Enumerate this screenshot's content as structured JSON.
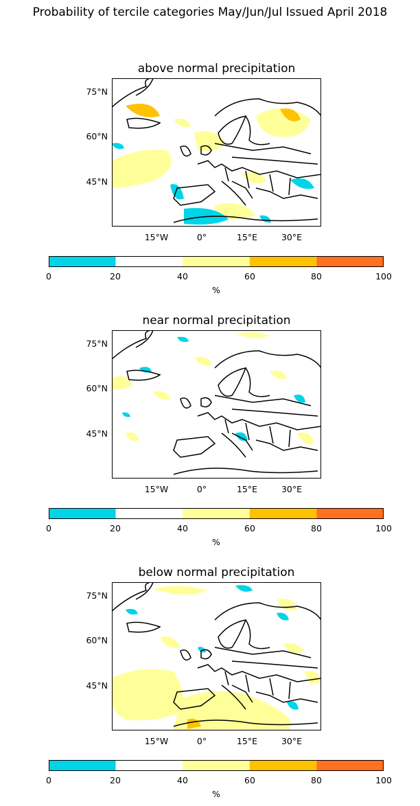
{
  "title": "Probability of tercile categories May/Jun/Jul Issued April 2018",
  "lat_labels": [
    "75°N",
    "60°N",
    "45°N"
  ],
  "lon_labels": [
    "15°W",
    "0°",
    "15°E",
    "30°E"
  ],
  "colorbar": {
    "ticks": [
      "0",
      "20",
      "40",
      "60",
      "80",
      "100"
    ],
    "unit": "%",
    "colors": [
      "#00d4e8",
      "#ffffff",
      "#ffff99",
      "#ffc200",
      "#ff7020"
    ]
  },
  "panels": [
    {
      "title": "above normal precipitation",
      "dominant_color": "#ffff99"
    },
    {
      "title": "near normal precipitation",
      "dominant_color": "#ffffff"
    },
    {
      "title": "below normal precipitation",
      "dominant_color": "#ffff99"
    }
  ]
}
